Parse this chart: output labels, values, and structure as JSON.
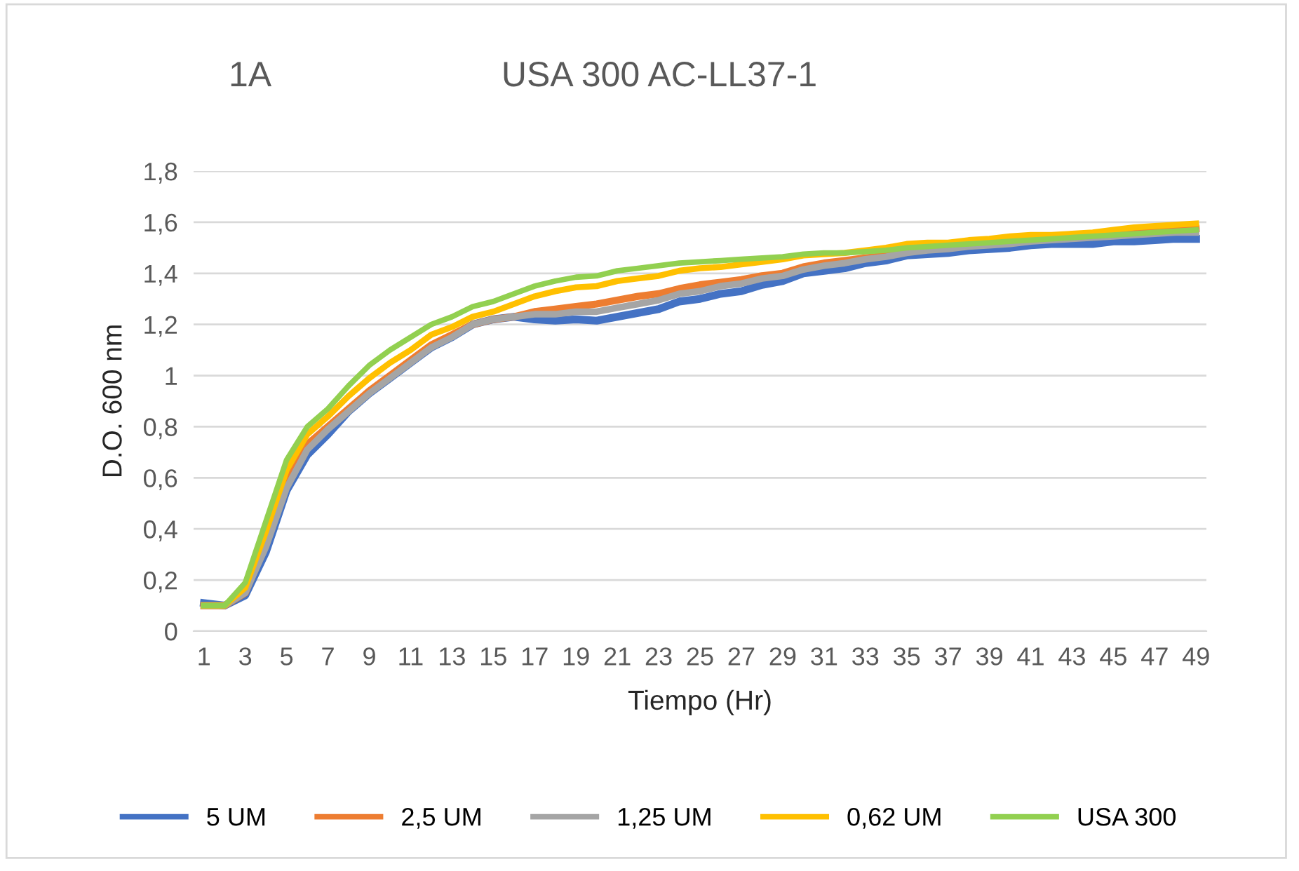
{
  "chart_data": {
    "type": "line",
    "title": "USA 300 AC-LL37-1",
    "annotations": [
      "1A"
    ],
    "xlabel": "Tiempo (Hr)",
    "ylabel": "D.O. 600 nm",
    "categories": [
      "1",
      null,
      "3",
      null,
      "5",
      null,
      "7",
      null,
      "9",
      null,
      "11",
      null,
      "13",
      null,
      "15",
      null,
      "17",
      null,
      "19",
      null,
      "21",
      null,
      "23",
      null,
      "25",
      null,
      "27",
      null,
      "29",
      null,
      "31",
      null,
      "33",
      null,
      "35",
      null,
      "37",
      null,
      "39",
      null,
      "41",
      null,
      "43",
      null,
      "45",
      null,
      "47",
      null,
      "49"
    ],
    "ylim": [
      0,
      1.8
    ],
    "yticks": [
      0,
      {
        "value": 0.2,
        "label": "0,2"
      },
      {
        "value": 0.4,
        "label": "0,4"
      },
      {
        "value": 0.6,
        "label": "0,6"
      },
      {
        "value": 0.8,
        "label": "0,8"
      },
      1,
      {
        "value": 1.2,
        "label": "1,2"
      },
      {
        "value": 1.4,
        "label": "1,4"
      },
      {
        "value": 1.6,
        "label": "1,6"
      },
      {
        "value": 1.8,
        "label": "1,8"
      }
    ],
    "grid": "y",
    "legend": "bottom",
    "marker": "none",
    "line_style": "solid",
    "series": [
      {
        "name": "5 UM",
        "color": "#4472c4",
        "values": [
          0.11,
          0.1,
          0.14,
          0.31,
          0.55,
          0.69,
          0.77,
          0.86,
          0.93,
          0.99,
          1.05,
          1.11,
          1.15,
          1.2,
          1.22,
          1.23,
          1.22,
          1.215,
          1.22,
          1.215,
          1.23,
          1.245,
          1.26,
          1.29,
          1.3,
          1.32,
          1.33,
          1.355,
          1.37,
          1.4,
          1.41,
          1.42,
          1.44,
          1.45,
          1.47,
          1.475,
          1.48,
          1.49,
          1.495,
          1.5,
          1.51,
          1.515,
          1.515,
          1.515,
          1.525,
          1.525,
          1.53,
          1.535,
          1.535
        ]
      },
      {
        "name": "2,5 UM",
        "color": "#ed7d31",
        "values": [
          0.1,
          0.1,
          0.15,
          0.35,
          0.58,
          0.73,
          0.8,
          0.87,
          0.94,
          1.0,
          1.06,
          1.12,
          1.16,
          1.2,
          1.22,
          1.23,
          1.25,
          1.26,
          1.27,
          1.28,
          1.295,
          1.31,
          1.32,
          1.34,
          1.355,
          1.365,
          1.375,
          1.39,
          1.4,
          1.425,
          1.44,
          1.45,
          1.46,
          1.47,
          1.49,
          1.5,
          1.505,
          1.51,
          1.52,
          1.525,
          1.535,
          1.54,
          1.545,
          1.55,
          1.555,
          1.56,
          1.565,
          1.57,
          1.575
        ]
      },
      {
        "name": "1,25 UM",
        "color": "#a5a5a5",
        "values": [
          0.1,
          0.1,
          0.15,
          0.33,
          0.56,
          0.71,
          0.79,
          0.86,
          0.93,
          0.99,
          1.05,
          1.11,
          1.15,
          1.2,
          1.22,
          1.23,
          1.24,
          1.24,
          1.25,
          1.25,
          1.265,
          1.28,
          1.295,
          1.32,
          1.33,
          1.35,
          1.36,
          1.38,
          1.39,
          1.415,
          1.43,
          1.44,
          1.455,
          1.465,
          1.48,
          1.49,
          1.495,
          1.505,
          1.51,
          1.515,
          1.525,
          1.53,
          1.535,
          1.54,
          1.545,
          1.55,
          1.555,
          1.56,
          1.56
        ]
      },
      {
        "name": "0,62 UM",
        "color": "#ffc000",
        "values": [
          0.1,
          0.1,
          0.17,
          0.39,
          0.63,
          0.77,
          0.84,
          0.92,
          0.99,
          1.05,
          1.1,
          1.16,
          1.19,
          1.23,
          1.25,
          1.28,
          1.31,
          1.33,
          1.345,
          1.35,
          1.37,
          1.38,
          1.39,
          1.41,
          1.42,
          1.425,
          1.435,
          1.445,
          1.455,
          1.47,
          1.475,
          1.48,
          1.49,
          1.5,
          1.515,
          1.52,
          1.52,
          1.53,
          1.535,
          1.545,
          1.55,
          1.55,
          1.555,
          1.56,
          1.57,
          1.58,
          1.585,
          1.59,
          1.595
        ]
      },
      {
        "name": "USA 300",
        "color": "#92d050",
        "values": [
          0.1,
          0.1,
          0.19,
          0.43,
          0.67,
          0.8,
          0.87,
          0.96,
          1.04,
          1.1,
          1.15,
          1.2,
          1.23,
          1.27,
          1.29,
          1.32,
          1.35,
          1.37,
          1.385,
          1.39,
          1.41,
          1.42,
          1.43,
          1.44,
          1.445,
          1.45,
          1.455,
          1.46,
          1.465,
          1.475,
          1.48,
          1.48,
          1.485,
          1.49,
          1.5,
          1.505,
          1.51,
          1.515,
          1.52,
          1.525,
          1.53,
          1.535,
          1.54,
          1.545,
          1.55,
          1.555,
          1.56,
          1.565,
          1.57
        ]
      }
    ]
  }
}
